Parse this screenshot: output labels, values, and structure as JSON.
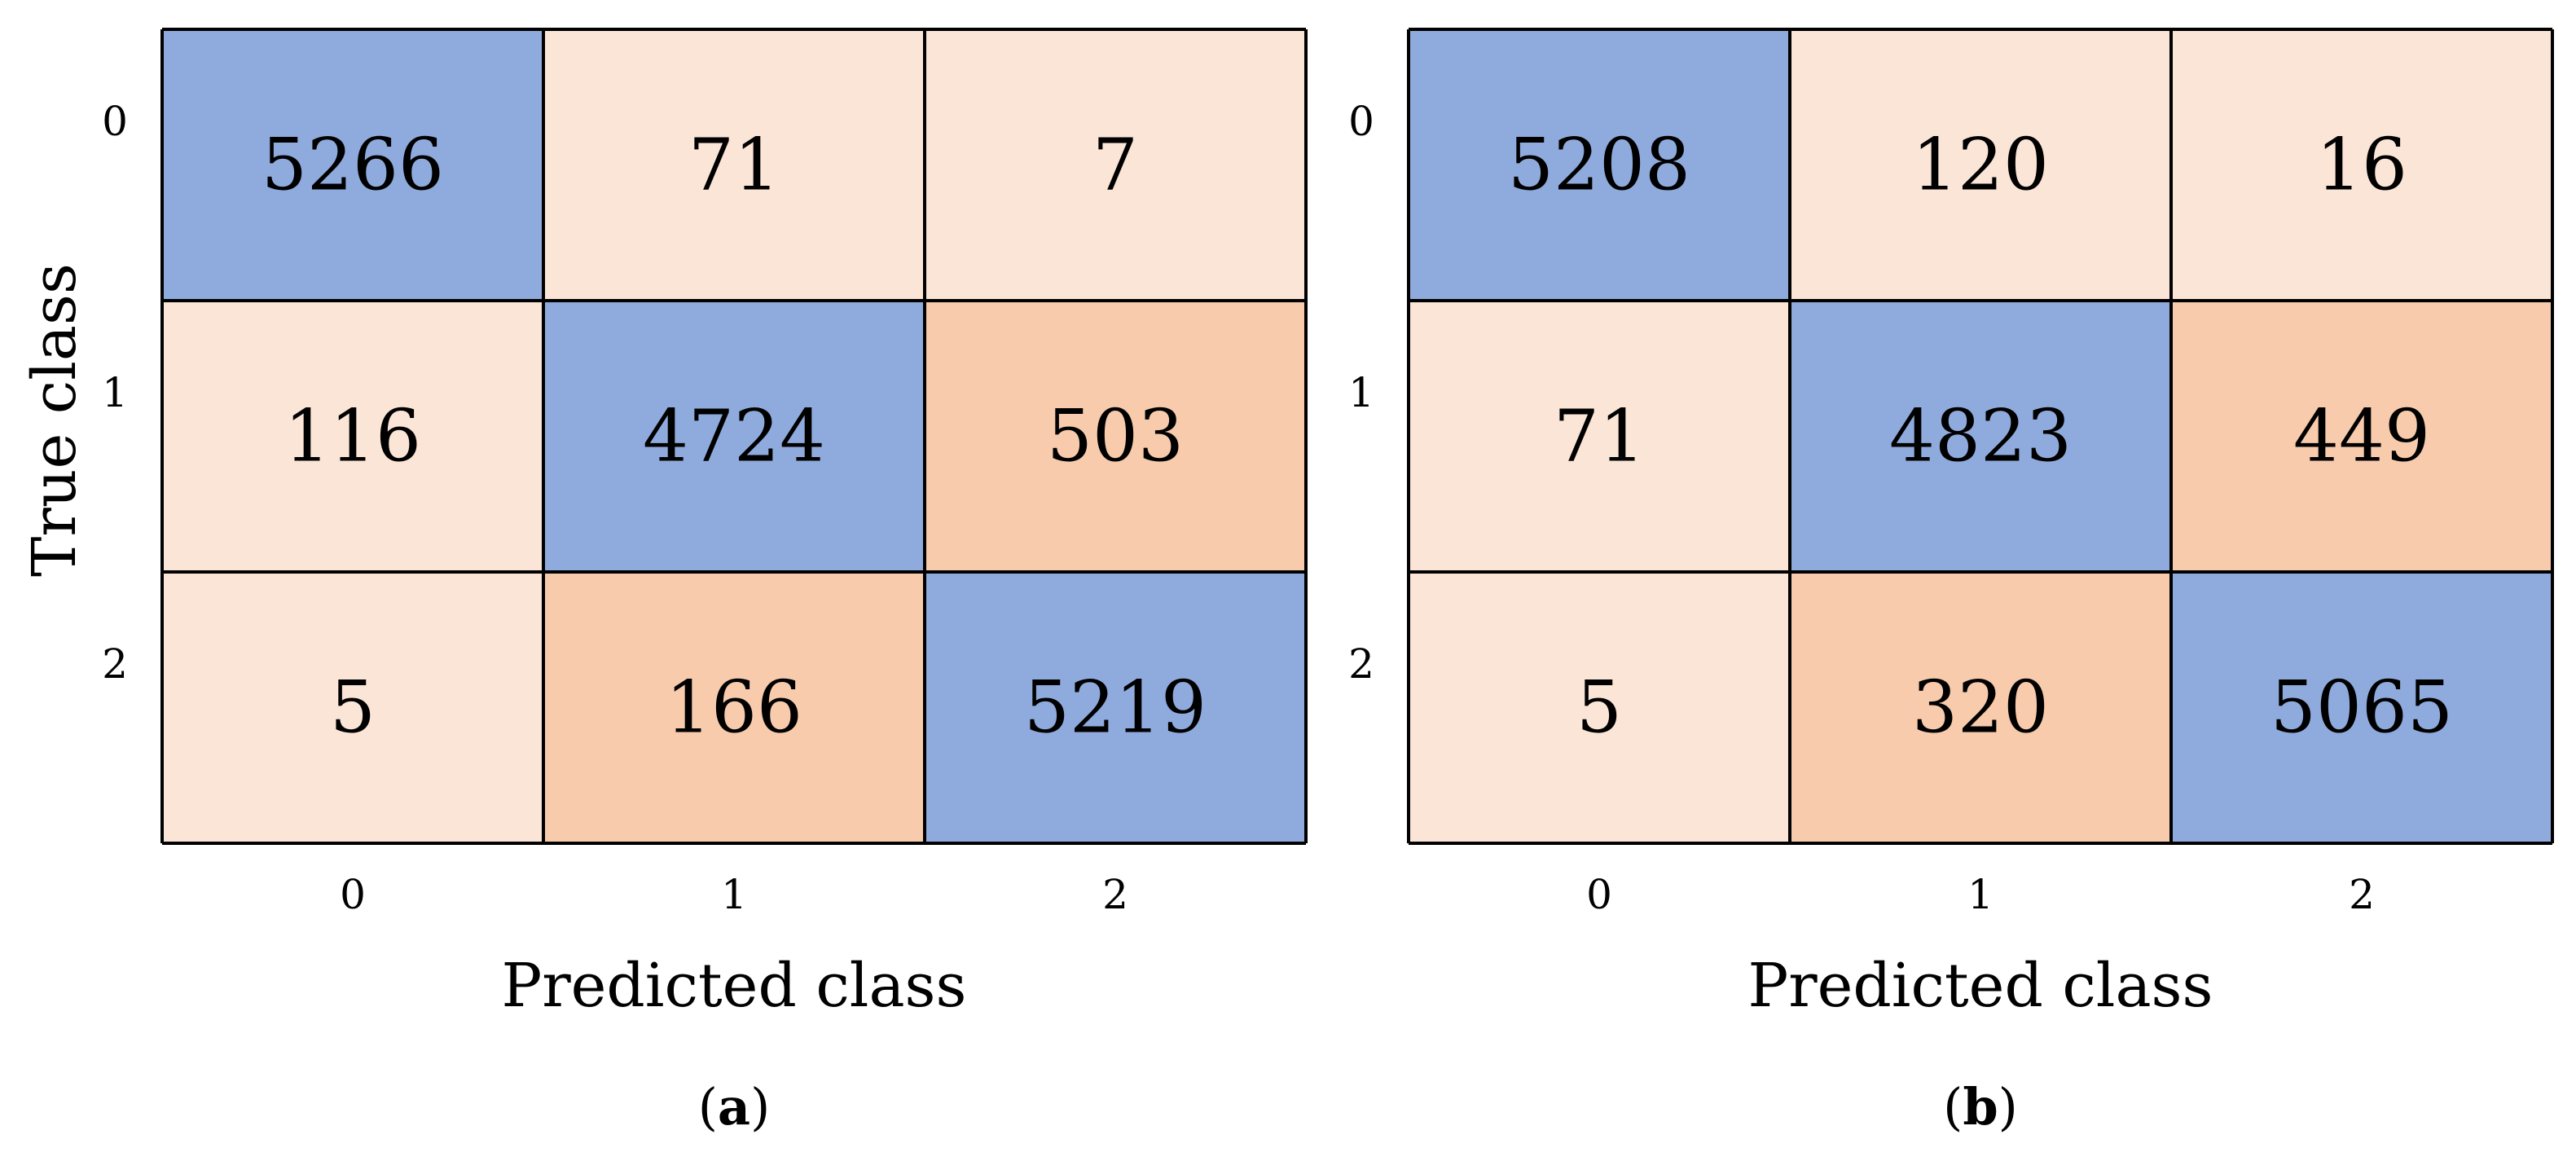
{
  "colors": {
    "diagonal": "#8FABDD",
    "light_off_diagonal": "#FBE5D6",
    "dark_off_diagonal": "#F8CBAD",
    "grid_line": "#000000"
  },
  "chart_data": [
    {
      "type": "heatmap",
      "title": "",
      "xlabel": "Predicted class",
      "ylabel": "True class",
      "x_categories": [
        "0",
        "1",
        "2"
      ],
      "y_categories": [
        "0",
        "1",
        "2"
      ],
      "caption": {
        "open": "(",
        "letter": "a",
        "close": ")"
      },
      "values": [
        [
          5266,
          71,
          7
        ],
        [
          116,
          4724,
          503
        ],
        [
          5,
          166,
          5219
        ]
      ],
      "cell_shading": [
        [
          "diagonal",
          "light_off_diagonal",
          "light_off_diagonal"
        ],
        [
          "light_off_diagonal",
          "diagonal",
          "dark_off_diagonal"
        ],
        [
          "light_off_diagonal",
          "dark_off_diagonal",
          "diagonal"
        ]
      ]
    },
    {
      "type": "heatmap",
      "title": "",
      "xlabel": "Predicted class",
      "ylabel": "",
      "x_categories": [
        "0",
        "1",
        "2"
      ],
      "y_categories": [
        "0",
        "1",
        "2"
      ],
      "caption": {
        "open": "(",
        "letter": "b",
        "close": ")"
      },
      "values": [
        [
          5208,
          120,
          16
        ],
        [
          71,
          4823,
          449
        ],
        [
          5,
          320,
          5065
        ]
      ],
      "cell_shading": [
        [
          "diagonal",
          "light_off_diagonal",
          "light_off_diagonal"
        ],
        [
          "light_off_diagonal",
          "diagonal",
          "dark_off_diagonal"
        ],
        [
          "light_off_diagonal",
          "dark_off_diagonal",
          "diagonal"
        ]
      ]
    }
  ]
}
